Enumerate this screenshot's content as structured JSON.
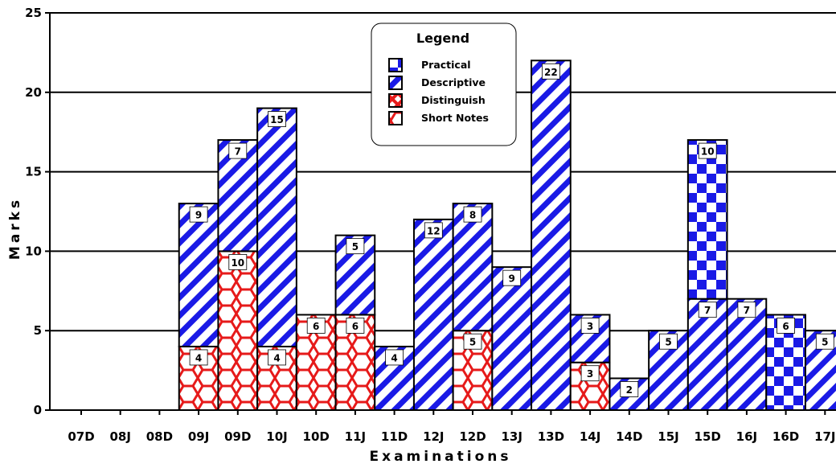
{
  "chart_data": {
    "type": "bar",
    "stacked": true,
    "title": "",
    "xlabel": "Examinations",
    "ylabel": "Marks",
    "ylim": [
      0,
      25
    ],
    "yticks": [
      "0",
      "5",
      "10",
      "15",
      "20",
      "25"
    ],
    "categories": [
      "07D",
      "08J",
      "08D",
      "09J",
      "09D",
      "10J",
      "10D",
      "11J",
      "11D",
      "12J",
      "12D",
      "13J",
      "13D",
      "14J",
      "14D",
      "15J",
      "15D",
      "16J",
      "16D",
      "17J"
    ],
    "series": [
      {
        "name": "Short Notes",
        "key": "short",
        "values": [
          0,
          0,
          0,
          4,
          10,
          4,
          6,
          6,
          0,
          0,
          5,
          0,
          0,
          3,
          0,
          0,
          0,
          0,
          0,
          0
        ]
      },
      {
        "name": "Distinguish",
        "key": "dist",
        "values": [
          0,
          0,
          0,
          0,
          0,
          0,
          0,
          0,
          0,
          0,
          0,
          0,
          0,
          0,
          0,
          0,
          0,
          0,
          0,
          0
        ]
      },
      {
        "name": "Descriptive",
        "key": "desc",
        "values": [
          0,
          0,
          0,
          9,
          7,
          15,
          0,
          5,
          4,
          12,
          8,
          9,
          22,
          3,
          2,
          5,
          7,
          7,
          0,
          5
        ]
      },
      {
        "name": "Practical",
        "key": "prac",
        "values": [
          0,
          0,
          0,
          0,
          0,
          0,
          0,
          0,
          0,
          0,
          0,
          0,
          0,
          0,
          0,
          0,
          10,
          0,
          6,
          0
        ]
      }
    ],
    "grid": true,
    "legend": {
      "title": "Legend",
      "position": "top-center",
      "entries": [
        "Practical",
        "Descriptive",
        "Distinguish",
        "Short Notes"
      ]
    },
    "colors": {
      "blue": "#1a1ae6",
      "red": "#e61a1a",
      "frame": "#000000"
    }
  }
}
